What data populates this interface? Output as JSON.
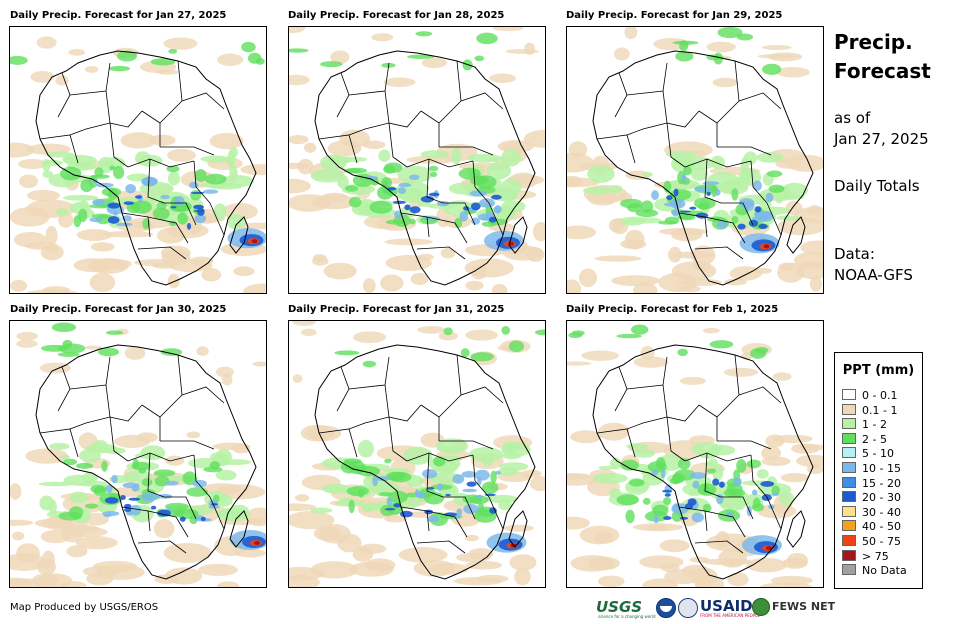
{
  "panels": [
    {
      "title": "Daily Precip. Forecast for Jan 27, 2025",
      "seed": 1
    },
    {
      "title": "Daily Precip. Forecast for Jan 28, 2025",
      "seed": 2
    },
    {
      "title": "Daily Precip. Forecast for Jan 29, 2025",
      "seed": 3
    },
    {
      "title": "Daily Precip. Forecast for Jan 30, 2025",
      "seed": 4
    },
    {
      "title": "Daily Precip. Forecast for Jan 31, 2025",
      "seed": 5
    },
    {
      "title": "Daily Precip. Forecast for Feb 1, 2025",
      "seed": 6
    }
  ],
  "side": {
    "title_line1": "Precip.",
    "title_line2": "Forecast",
    "asof_line1": "as of",
    "asof_line2": "Jan 27, 2025",
    "totals": "Daily Totals",
    "data_line1": "Data:",
    "data_line2": "NOAA-GFS"
  },
  "legend": {
    "title": "PPT (mm)",
    "items": [
      {
        "label": "0 - 0.1",
        "color": "#ffffff"
      },
      {
        "label": "0.1 - 1",
        "color": "#eed8b8"
      },
      {
        "label": "1 - 2",
        "color": "#b6f2a6"
      },
      {
        "label": "2 - 5",
        "color": "#5fe05c"
      },
      {
        "label": "5 - 10",
        "color": "#b4f0f4"
      },
      {
        "label": "10 - 15",
        "color": "#7cb8ea"
      },
      {
        "label": "15 - 20",
        "color": "#3c8ee6"
      },
      {
        "label": "20 - 30",
        "color": "#1c5ad2"
      },
      {
        "label": "30 - 40",
        "color": "#fbe28a"
      },
      {
        "label": "40 - 50",
        "color": "#f3a31b"
      },
      {
        "label": "50 - 75",
        "color": "#ee4414"
      },
      {
        "label": "> 75",
        "color": "#a5161a"
      },
      {
        "label": "No Data",
        "color": "#a0a0a0"
      }
    ]
  },
  "credit": "Map Produced by USGS/EROS",
  "logos": {
    "usgs": "USGS",
    "usgs_tagline": "science for a changing world",
    "usaid": "USAID",
    "usaid_tagline": "FROM THE AMERICAN PEOPLE",
    "fews": "FEWS NET"
  }
}
